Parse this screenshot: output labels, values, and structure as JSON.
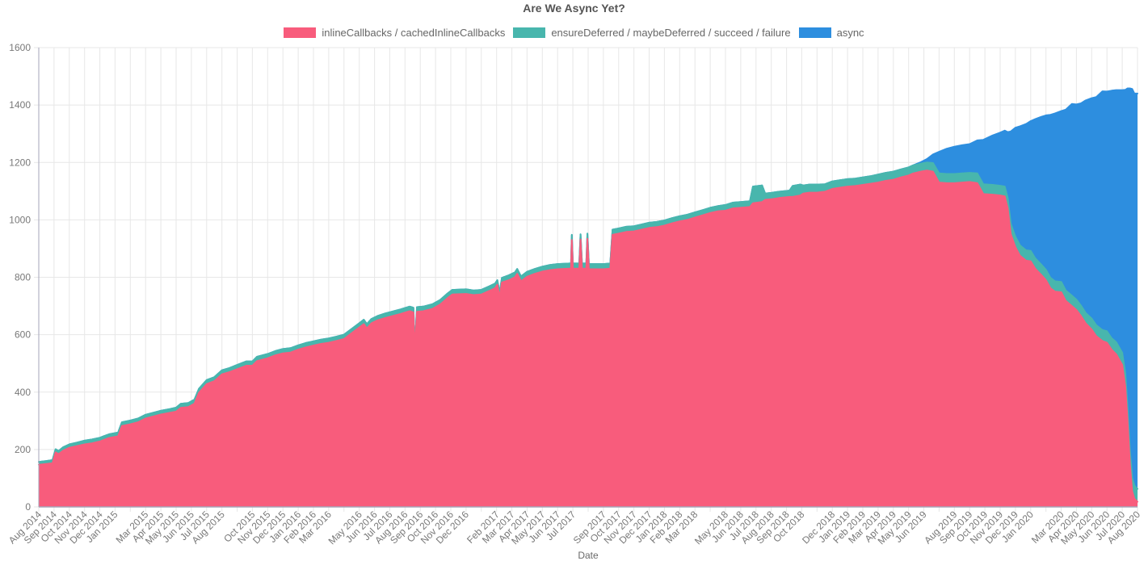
{
  "title": "Are We Async Yet?",
  "legend": {
    "items": [
      {
        "label": "inlineCallbacks / cachedInlineCallbacks",
        "color": "#f85c7c"
      },
      {
        "label": "ensureDeferred / maybeDeferred / succeed / failure",
        "color": "#48b6ad"
      },
      {
        "label": "async",
        "color": "#2d8edf"
      }
    ]
  },
  "x_axis": {
    "title": "Date",
    "tick_labels": [
      "Aug 2014",
      "Sep 2014",
      "Oct 2014",
      "Nov 2014",
      "Dec 2014",
      "Jan 2015",
      "Mar 2015",
      "Apr 2015",
      "May 2015",
      "Jun 2015",
      "Jul 2015",
      "Aug 2015",
      "Oct 2015",
      "Nov 2015",
      "Dec 2015",
      "Jan 2016",
      "Feb 2016",
      "Mar 2016",
      "May 2016",
      "Jun 2016",
      "Jul 2016",
      "Aug 2016",
      "Sep 2016",
      "Oct 2016",
      "Nov 2016",
      "Dec 2016",
      "Feb 2017",
      "Mar 2017",
      "Apr 2017",
      "May 2017",
      "Jun 2017",
      "Jul 2017",
      "Sep 2017",
      "Oct 2017",
      "Nov 2017",
      "Dec 2017",
      "Jan 2018",
      "Feb 2018",
      "Mar 2018",
      "May 2018",
      "Jun 2018",
      "Jul 2018",
      "Aug 2018",
      "Sep 2018",
      "Oct 2018",
      "Dec 2018",
      "Jan 2019",
      "Feb 2019",
      "Mar 2019",
      "Apr 2019",
      "May 2019",
      "Jun 2019",
      "Aug 2019",
      "Sep 2019",
      "Oct 2019",
      "Nov 2019",
      "Dec 2019",
      "Jan 2020",
      "Mar 2020",
      "Apr 2020",
      "May 2020",
      "Jun 2020",
      "Jul 2020",
      "Aug 2020"
    ]
  },
  "y_axis": {
    "ticks": [
      0,
      200,
      400,
      600,
      800,
      1000,
      1200,
      1400,
      1600
    ],
    "max": 1600
  },
  "colors": {
    "pink": "#f85c7c",
    "teal": "#48b6ad",
    "blue": "#2d8edf",
    "grid": "#e7e7e7",
    "axis": "#a6a6ba",
    "tick_text": "#787878",
    "title_text": "#545454",
    "legend_text": "#666666",
    "background": "#ffffff"
  },
  "chart_data": {
    "type": "area",
    "stacked": true,
    "title": "Are We Async Yet?",
    "xlabel": "Date",
    "ylabel": "",
    "ylim": [
      0,
      1600
    ],
    "grid": true,
    "legend_position": "top",
    "x_unit": "months since Aug 2014 (0 = Aug 2014, 72 = Aug 2020)",
    "columns": [
      "month_index",
      "inlineCallbacks / cachedInlineCallbacks",
      "ensureDeferred / maybeDeferred / succeed / failure",
      "async"
    ],
    "series": [
      {
        "name": "inlineCallbacks / cachedInlineCallbacks",
        "color": "#f85c7c",
        "column": 1
      },
      {
        "name": "ensureDeferred / maybeDeferred / succeed / failure",
        "color": "#48b6ad",
        "column": 2
      },
      {
        "name": "async",
        "color": "#2d8edf",
        "column": 3
      }
    ],
    "points": [
      [
        0.0,
        147,
        10,
        0
      ],
      [
        0.5,
        150,
        10,
        0
      ],
      [
        0.9,
        152,
        11,
        0
      ],
      [
        1.1,
        190,
        11,
        0
      ],
      [
        1.3,
        184,
        11,
        0
      ],
      [
        1.6,
        196,
        12,
        0
      ],
      [
        2.0,
        206,
        12,
        0
      ],
      [
        2.5,
        212,
        12,
        0
      ],
      [
        3.0,
        218,
        13,
        0
      ],
      [
        3.5,
        222,
        13,
        0
      ],
      [
        4.0,
        228,
        13,
        0
      ],
      [
        4.6,
        240,
        13,
        0
      ],
      [
        5.2,
        246,
        13,
        0
      ],
      [
        5.45,
        282,
        13,
        0
      ],
      [
        6.0,
        288,
        13,
        0
      ],
      [
        6.5,
        295,
        13,
        0
      ],
      [
        7.0,
        308,
        13,
        0
      ],
      [
        7.5,
        315,
        13,
        0
      ],
      [
        8.0,
        322,
        13,
        0
      ],
      [
        8.6,
        328,
        13,
        0
      ],
      [
        9.0,
        332,
        14,
        0
      ],
      [
        9.3,
        345,
        14,
        0
      ],
      [
        9.8,
        348,
        14,
        0
      ],
      [
        10.2,
        360,
        14,
        0
      ],
      [
        10.5,
        398,
        14,
        0
      ],
      [
        11.0,
        428,
        14,
        0
      ],
      [
        11.5,
        438,
        14,
        0
      ],
      [
        12.0,
        462,
        14,
        0
      ],
      [
        12.5,
        470,
        14,
        0
      ],
      [
        13.0,
        480,
        15,
        0
      ],
      [
        13.6,
        492,
        15,
        0
      ],
      [
        14.0,
        492,
        15,
        0
      ],
      [
        14.3,
        508,
        15,
        0
      ],
      [
        15.0,
        518,
        15,
        0
      ],
      [
        15.5,
        528,
        15,
        0
      ],
      [
        16.0,
        535,
        15,
        0
      ],
      [
        16.5,
        538,
        15,
        0
      ],
      [
        17.0,
        548,
        15,
        0
      ],
      [
        17.5,
        556,
        15,
        0
      ],
      [
        18.0,
        562,
        15,
        0
      ],
      [
        18.5,
        568,
        15,
        0
      ],
      [
        19.0,
        572,
        15,
        0
      ],
      [
        19.5,
        578,
        15,
        0
      ],
      [
        20.0,
        585,
        15,
        0
      ],
      [
        20.5,
        605,
        15,
        0
      ],
      [
        21.0,
        625,
        15,
        0
      ],
      [
        21.3,
        637,
        15,
        0
      ],
      [
        21.5,
        622,
        15,
        0
      ],
      [
        21.8,
        640,
        15,
        0
      ],
      [
        22.2,
        650,
        15,
        0
      ],
      [
        22.7,
        658,
        16,
        0
      ],
      [
        23.2,
        665,
        16,
        0
      ],
      [
        23.7,
        672,
        16,
        0
      ],
      [
        24.3,
        682,
        16,
        0
      ],
      [
        24.55,
        678,
        16,
        0
      ],
      [
        24.65,
        545,
        16,
        0
      ],
      [
        24.78,
        680,
        16,
        0
      ],
      [
        25.2,
        682,
        16,
        0
      ],
      [
        25.8,
        690,
        16,
        0
      ],
      [
        26.3,
        705,
        16,
        0
      ],
      [
        26.8,
        728,
        16,
        0
      ],
      [
        27.1,
        740,
        16,
        0
      ],
      [
        28.0,
        742,
        16,
        0
      ],
      [
        28.5,
        738,
        16,
        0
      ],
      [
        29.0,
        740,
        16,
        0
      ],
      [
        29.5,
        752,
        16,
        0
      ],
      [
        29.9,
        762,
        16,
        0
      ],
      [
        30.05,
        774,
        16,
        0
      ],
      [
        30.2,
        730,
        16,
        0
      ],
      [
        30.35,
        782,
        16,
        0
      ],
      [
        30.8,
        790,
        17,
        0
      ],
      [
        31.2,
        800,
        17,
        0
      ],
      [
        31.35,
        812,
        17,
        0
      ],
      [
        31.6,
        786,
        17,
        0
      ],
      [
        32.0,
        802,
        17,
        0
      ],
      [
        32.5,
        812,
        17,
        0
      ],
      [
        33.0,
        820,
        17,
        0
      ],
      [
        33.5,
        825,
        18,
        0
      ],
      [
        34.0,
        828,
        18,
        0
      ],
      [
        34.8,
        830,
        18,
        0
      ],
      [
        34.88,
        830,
        18,
        0
      ],
      [
        34.93,
        930,
        18,
        0
      ],
      [
        35.0,
        830,
        18,
        0
      ],
      [
        35.42,
        830,
        18,
        0
      ],
      [
        35.5,
        932,
        18,
        0
      ],
      [
        35.6,
        830,
        18,
        0
      ],
      [
        35.88,
        830,
        18,
        0
      ],
      [
        35.95,
        934,
        18,
        0
      ],
      [
        36.05,
        828,
        18,
        0
      ],
      [
        37.0,
        828,
        18,
        0
      ],
      [
        37.45,
        830,
        18,
        0
      ],
      [
        37.6,
        948,
        18,
        0
      ],
      [
        38.0,
        952,
        18,
        0
      ],
      [
        38.5,
        958,
        18,
        0
      ],
      [
        39.0,
        960,
        18,
        0
      ],
      [
        39.5,
        966,
        18,
        0
      ],
      [
        40.0,
        972,
        18,
        0
      ],
      [
        40.5,
        975,
        18,
        0
      ],
      [
        41.0,
        980,
        18,
        0
      ],
      [
        41.5,
        988,
        18,
        0
      ],
      [
        42.0,
        995,
        18,
        0
      ],
      [
        42.5,
        1000,
        18,
        0
      ],
      [
        43.0,
        1008,
        18,
        0
      ],
      [
        43.5,
        1016,
        18,
        0
      ],
      [
        44.0,
        1024,
        18,
        0
      ],
      [
        44.5,
        1030,
        18,
        0
      ],
      [
        45.0,
        1032,
        20,
        0
      ],
      [
        45.5,
        1040,
        20,
        0
      ],
      [
        46.0,
        1042,
        20,
        0
      ],
      [
        46.6,
        1045,
        20,
        0
      ],
      [
        46.8,
        1058,
        58,
        0
      ],
      [
        47.4,
        1062,
        58,
        0
      ],
      [
        47.6,
        1070,
        22,
        0
      ],
      [
        48.0,
        1072,
        22,
        0
      ],
      [
        48.5,
        1076,
        22,
        0
      ],
      [
        49.2,
        1080,
        22,
        0
      ],
      [
        49.4,
        1080,
        38,
        0
      ],
      [
        49.9,
        1085,
        38,
        0
      ],
      [
        50.1,
        1092,
        28,
        0
      ],
      [
        50.5,
        1095,
        28,
        0
      ],
      [
        51.0,
        1095,
        28,
        0
      ],
      [
        51.5,
        1098,
        26,
        0
      ],
      [
        52.0,
        1108,
        26,
        0
      ],
      [
        52.5,
        1112,
        26,
        0
      ],
      [
        53.0,
        1116,
        26,
        0
      ],
      [
        53.5,
        1118,
        26,
        0
      ],
      [
        54.0,
        1122,
        26,
        0
      ],
      [
        54.5,
        1126,
        26,
        0
      ],
      [
        55.0,
        1130,
        28,
        0
      ],
      [
        55.5,
        1136,
        28,
        0
      ],
      [
        56.0,
        1140,
        28,
        0
      ],
      [
        56.5,
        1148,
        28,
        0
      ],
      [
        57.0,
        1155,
        28,
        0
      ],
      [
        57.3,
        1162,
        28,
        0
      ],
      [
        57.8,
        1168,
        28,
        5
      ],
      [
        58.2,
        1172,
        28,
        12
      ],
      [
        58.6,
        1168,
        30,
        30
      ],
      [
        59.0,
        1130,
        32,
        75
      ],
      [
        59.5,
        1128,
        32,
        88
      ],
      [
        60.0,
        1128,
        32,
        95
      ],
      [
        60.5,
        1130,
        32,
        98
      ],
      [
        61.0,
        1132,
        32,
        100
      ],
      [
        61.5,
        1128,
        34,
        115
      ],
      [
        61.9,
        1090,
        34,
        155
      ],
      [
        62.5,
        1088,
        34,
        172
      ],
      [
        63.0,
        1085,
        34,
        185
      ],
      [
        63.3,
        1082,
        34,
        195
      ],
      [
        63.5,
        1040,
        36,
        230
      ],
      [
        63.7,
        950,
        36,
        322
      ],
      [
        64.0,
        905,
        36,
        380
      ],
      [
        64.3,
        875,
        36,
        415
      ],
      [
        64.7,
        858,
        36,
        440
      ],
      [
        65.0,
        856,
        36,
        452
      ],
      [
        65.3,
        830,
        36,
        485
      ],
      [
        65.7,
        808,
        36,
        515
      ],
      [
        66.0,
        790,
        36,
        538
      ],
      [
        66.3,
        762,
        36,
        568
      ],
      [
        66.6,
        750,
        36,
        585
      ],
      [
        67.0,
        748,
        36,
        595
      ],
      [
        67.3,
        718,
        36,
        630
      ],
      [
        67.7,
        700,
        36,
        668
      ],
      [
        68.0,
        686,
        36,
        680
      ],
      [
        68.3,
        665,
        36,
        705
      ],
      [
        68.6,
        640,
        36,
        740
      ],
      [
        69.0,
        618,
        38,
        768
      ],
      [
        69.3,
        595,
        38,
        795
      ],
      [
        69.7,
        578,
        38,
        832
      ],
      [
        70.0,
        572,
        40,
        835
      ],
      [
        70.3,
        548,
        40,
        862
      ],
      [
        70.6,
        532,
        42,
        878
      ],
      [
        71.0,
        495,
        42,
        915
      ],
      [
        71.2,
        420,
        45,
        988
      ],
      [
        71.35,
        300,
        45,
        1113
      ],
      [
        71.5,
        150,
        46,
        1262
      ],
      [
        71.65,
        55,
        46,
        1355
      ],
      [
        71.8,
        28,
        46,
        1366
      ],
      [
        72.0,
        18,
        45,
        1377
      ]
    ]
  }
}
